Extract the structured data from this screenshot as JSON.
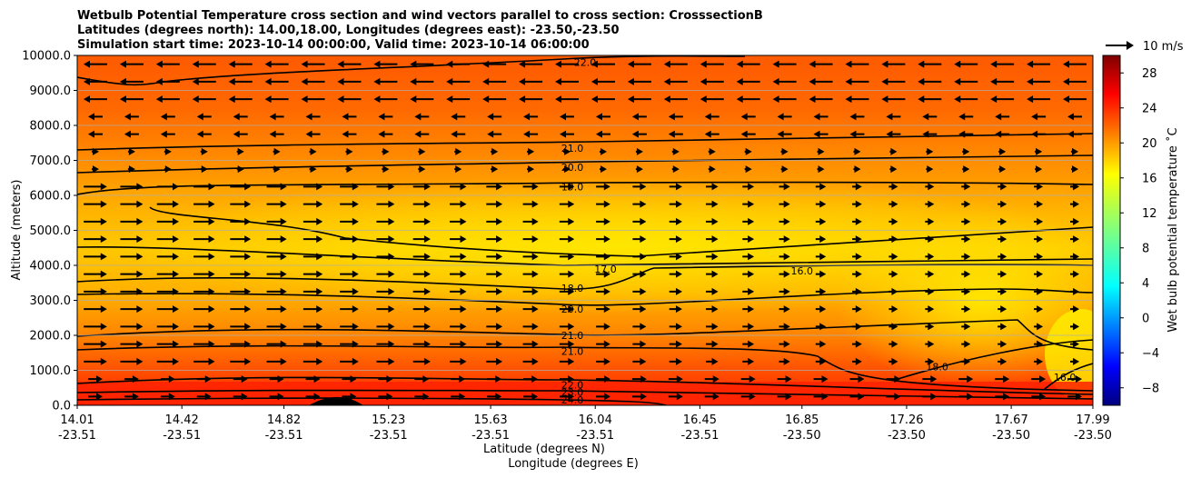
{
  "chart_data": {
    "type": "contour",
    "title_lines": [
      "Wetbulb Potential Temperature cross section and wind vectors parallel to cross section: CrosssectionB",
      "Latitudes (degrees north): 14.00,18.00, Longitudes (degrees east): -23.50,-23.50",
      "Simulation start time: 2023-10-14 00:00:00, Valid time: 2023-10-14 06:00:00"
    ],
    "ylabel": "Altitude (meters)",
    "xlabel_lat": "Latitude (degrees N)",
    "xlabel_lon": "Longitude (degrees E)",
    "ylim": [
      0,
      10000
    ],
    "xlim": [
      14.01,
      17.99
    ],
    "y_ticks": [
      "0.0",
      "1000.0",
      "2000.0",
      "3000.0",
      "4000.0",
      "5000.0",
      "6000.0",
      "7000.0",
      "8000.0",
      "9000.0",
      "10000.0"
    ],
    "x_ticks": [
      {
        "lat": "14.01",
        "lon": "-23.51"
      },
      {
        "lat": "14.42",
        "lon": "-23.51"
      },
      {
        "lat": "14.82",
        "lon": "-23.51"
      },
      {
        "lat": "15.23",
        "lon": "-23.51"
      },
      {
        "lat": "15.63",
        "lon": "-23.51"
      },
      {
        "lat": "16.04",
        "lon": "-23.51"
      },
      {
        "lat": "16.45",
        "lon": "-23.51"
      },
      {
        "lat": "16.85",
        "lon": "-23.50"
      },
      {
        "lat": "17.26",
        "lon": "-23.50"
      },
      {
        "lat": "17.67",
        "lon": "-23.50"
      },
      {
        "lat": "17.99",
        "lon": "-23.50"
      }
    ],
    "colorbar": {
      "label": "Wet bulb potential temperature $^\\circ$C",
      "label_text": "Wet bulb potential temperature ˚C",
      "range": [
        -10,
        30
      ],
      "ticks": [
        "−8",
        "−4",
        "0",
        "4",
        "8",
        "12",
        "16",
        "20",
        "24",
        "28"
      ],
      "colormap": "jet"
    },
    "quiver_key": {
      "label": "10 m/s",
      "value_ms": 10
    },
    "contour_labels": [
      {
        "text": "22.0",
        "x": 16.0,
        "y": 9800
      },
      {
        "text": "21.0",
        "x": 15.95,
        "y": 7350
      },
      {
        "text": "20.0",
        "x": 15.95,
        "y": 6800
      },
      {
        "text": "19.0",
        "x": 15.95,
        "y": 6250
      },
      {
        "text": "17.0",
        "x": 16.08,
        "y": 3900
      },
      {
        "text": "16.0",
        "x": 16.85,
        "y": 3850
      },
      {
        "text": "18.0",
        "x": 15.95,
        "y": 3350
      },
      {
        "text": "20.0",
        "x": 15.95,
        "y": 2750
      },
      {
        "text": "21.0",
        "x": 15.95,
        "y": 2000
      },
      {
        "text": "21.0",
        "x": 15.95,
        "y": 1550
      },
      {
        "text": "18.0",
        "x": 17.38,
        "y": 1100
      },
      {
        "text": "16.0",
        "x": 17.88,
        "y": 800
      },
      {
        "text": "22.0",
        "x": 15.95,
        "y": 580
      },
      {
        "text": "23.0",
        "x": 15.95,
        "y": 380
      },
      {
        "text": "24.0",
        "x": 15.95,
        "y": 150
      }
    ]
  }
}
